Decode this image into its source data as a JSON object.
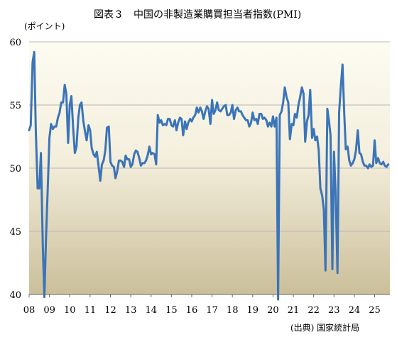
{
  "chart_data": {
    "type": "line",
    "title": "図表３　中国の非製造業購買担当者指数(PMI)",
    "ylabel": "(ポイント)",
    "source": "(出典) 国家統計局",
    "ylim": [
      40,
      60
    ],
    "xlim": [
      2008.0,
      2025.75
    ],
    "yticks": [
      40,
      45,
      50,
      55,
      60
    ],
    "xticks": [
      "08",
      "09",
      "10",
      "11",
      "12",
      "13",
      "14",
      "15",
      "16",
      "17",
      "18",
      "19",
      "20",
      "21",
      "22",
      "23",
      "24",
      "25"
    ],
    "grid": "horizontal",
    "line_color": "#3b74b8",
    "series": [
      {
        "x": [
          2008.0,
          2008.08,
          2008.17,
          2008.25,
          2008.33,
          2008.42,
          2008.5,
          2008.58,
          2008.67,
          2008.75,
          2008.83,
          2008.92,
          2009.0,
          2009.08,
          2009.17,
          2009.25,
          2009.33,
          2009.42,
          2009.5,
          2009.58,
          2009.67,
          2009.75,
          2009.83,
          2009.92,
          2010.0,
          2010.08,
          2010.17,
          2010.25,
          2010.33,
          2010.42,
          2010.5,
          2010.58,
          2010.67,
          2010.75,
          2010.83,
          2010.92,
          2011.0,
          2011.08,
          2011.17,
          2011.25,
          2011.33,
          2011.42,
          2011.5,
          2011.58,
          2011.67,
          2011.75,
          2011.83,
          2011.92,
          2012.0,
          2012.08,
          2012.17,
          2012.25,
          2012.33,
          2012.42,
          2012.5,
          2012.58,
          2012.67,
          2012.75,
          2012.83,
          2012.92,
          2013.0,
          2013.08,
          2013.17,
          2013.25,
          2013.33,
          2013.42,
          2013.5,
          2013.58,
          2013.67,
          2013.75,
          2013.83,
          2013.92,
          2014.0,
          2014.08,
          2014.17,
          2014.25,
          2014.33,
          2014.42,
          2014.5,
          2014.58,
          2014.67,
          2014.75,
          2014.83,
          2014.92,
          2015.0,
          2015.08,
          2015.17,
          2015.25,
          2015.33,
          2015.42,
          2015.5,
          2015.58,
          2015.67,
          2015.75,
          2015.83,
          2015.92,
          2016.0,
          2016.08,
          2016.17,
          2016.25,
          2016.33,
          2016.42,
          2016.5,
          2016.58,
          2016.67,
          2016.75,
          2016.83,
          2016.92,
          2017.0,
          2017.08,
          2017.17,
          2017.25,
          2017.33,
          2017.42,
          2017.5,
          2017.58,
          2017.67,
          2017.75,
          2017.83,
          2017.92,
          2018.0,
          2018.08,
          2018.17,
          2018.25,
          2018.33,
          2018.42,
          2018.5,
          2018.58,
          2018.67,
          2018.75,
          2018.83,
          2018.92,
          2019.0,
          2019.08,
          2019.17,
          2019.25,
          2019.33,
          2019.42,
          2019.5,
          2019.58,
          2019.67,
          2019.75,
          2019.83,
          2019.92,
          2020.0,
          2020.08,
          2020.17,
          2020.25,
          2020.33,
          2020.42,
          2020.5,
          2020.58,
          2020.67,
          2020.75,
          2020.83,
          2020.92,
          2021.0,
          2021.08,
          2021.17,
          2021.25,
          2021.33,
          2021.42,
          2021.5,
          2021.58,
          2021.67,
          2021.75,
          2021.83,
          2021.92,
          2022.0,
          2022.08,
          2022.17,
          2022.25,
          2022.33,
          2022.42,
          2022.5,
          2022.58,
          2022.67,
          2022.75,
          2022.83,
          2022.92,
          2023.0,
          2023.08,
          2023.17,
          2023.25,
          2023.33,
          2023.42,
          2023.5,
          2023.58,
          2023.67,
          2023.75,
          2023.83,
          2023.92,
          2024.0,
          2024.08,
          2024.17,
          2024.25,
          2024.33,
          2024.42,
          2024.5,
          2024.58,
          2024.67,
          2024.75,
          2024.83,
          2024.92,
          2025.0,
          2025.08,
          2025.17,
          2025.25,
          2025.33,
          2025.42,
          2025.5,
          2025.58,
          2025.67
        ],
        "y": [
          53.0,
          53.4,
          58.4,
          59.2,
          53.0,
          48.4,
          48.4,
          51.2,
          44.0,
          39.8,
          44.5,
          48.5,
          52.4,
          53.5,
          53.1,
          53.3,
          53.3,
          54.0,
          54.4,
          55.2,
          55.2,
          56.6,
          55.9,
          52.0,
          55.0,
          55.7,
          53.1,
          51.2,
          51.7,
          54.0,
          55.0,
          55.2,
          53.7,
          52.9,
          52.2,
          53.4,
          53.0,
          51.6,
          51.1,
          50.9,
          51.3,
          50.1,
          49.0,
          50.3,
          50.6,
          51.4,
          53.2,
          53.3,
          50.5,
          50.2,
          50.1,
          49.2,
          49.7,
          50.6,
          50.6,
          50.5,
          50.1,
          51.0,
          50.7,
          50.7,
          50.1,
          50.3,
          51.1,
          51.4,
          51.3,
          50.8,
          50.2,
          50.4,
          50.4,
          50.6,
          51.0,
          51.7,
          51.1,
          51.2,
          51.1,
          50.3,
          54.2,
          53.6,
          53.8,
          53.4,
          53.5,
          53.4,
          53.9,
          53.9,
          53.4,
          53.3,
          53.8,
          53.0,
          53.6,
          54.0,
          53.9,
          52.6,
          53.7,
          53.1,
          53.6,
          53.9,
          53.7,
          54.0,
          54.2,
          54.8,
          54.4,
          54.8,
          54.5,
          53.9,
          54.5,
          54.9,
          54.7,
          53.5,
          55.4,
          54.3,
          54.6,
          55.2,
          54.6,
          54.5,
          54.7,
          54.9,
          55.0,
          54.2,
          54.2,
          54.4,
          55.0,
          53.9,
          54.6,
          54.8,
          54.5,
          54.5,
          54.2,
          54.0,
          53.8,
          53.8,
          53.3,
          53.6,
          54.4,
          53.8,
          53.9,
          53.5,
          54.3,
          54.3,
          53.9,
          54.0,
          53.8,
          53.3,
          53.6,
          53.3,
          54.1,
          53.3,
          54.0,
          39.6,
          54.2,
          54.5,
          55.2,
          56.4,
          55.6,
          55.2,
          52.3,
          53.5,
          53.4,
          54.3,
          54.0,
          55.0,
          55.6,
          56.4,
          55.9,
          52.1,
          53.7,
          54.2,
          56.2,
          52.4,
          53.1,
          52.2,
          52.5,
          51.4,
          48.4,
          47.8,
          46.7,
          41.9,
          54.7,
          53.8,
          52.6,
          42.0,
          51.3,
          48.0,
          41.7,
          54.4,
          56.3,
          58.2,
          54.5,
          51.5,
          51.7,
          50.6,
          50.2,
          50.4,
          50.7,
          51.4,
          53.0,
          51.2,
          51.1,
          50.5,
          50.2,
          50.2,
          50.0,
          50.3,
          50.1,
          50.2,
          52.2,
          50.4,
          50.8,
          50.4,
          50.3,
          50.5,
          50.2,
          50.1,
          50.3
        ]
      }
    ]
  }
}
